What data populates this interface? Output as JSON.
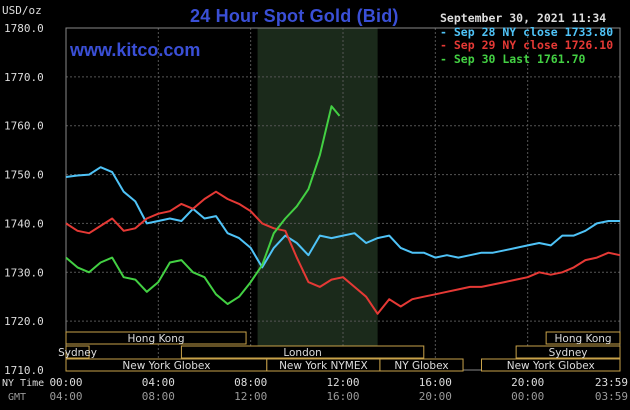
{
  "header": {
    "title": "24 Hour Spot Gold (Bid)",
    "brand": "www.kitco.com",
    "unit": "USD/oz",
    "timestamp": "September 30, 2021 11:34"
  },
  "legend": [
    {
      "label": "Sep 28 NY close 1733.80",
      "color": "#4fc3f7"
    },
    {
      "label": "Sep 29 NY close 1726.10",
      "color": "#e53935"
    },
    {
      "label": "Sep 30 Last 1761.70",
      "color": "#43d043"
    }
  ],
  "axes": {
    "ny_time_label": "NY Time",
    "gmt_label": "GMT",
    "ny_ticks": [
      "00:00",
      "04:00",
      "08:00",
      "12:00",
      "16:00",
      "20:00",
      "23:59"
    ],
    "gmt_ticks": [
      "04:00",
      "08:00",
      "12:00",
      "16:00",
      "20:00",
      "00:00",
      "03:59"
    ],
    "y_ticks": [
      "1780.0",
      "1770.0",
      "1760.0",
      "1750.0",
      "1740.0",
      "1730.0",
      "1720.0",
      "1710.0"
    ]
  },
  "sessions": [
    {
      "label": "Hong Kong",
      "start_h": 0,
      "end_h": 7.8,
      "row": 0
    },
    {
      "label": "Hong Kong",
      "start_h": 20.8,
      "end_h": 24,
      "row": 0
    },
    {
      "label": "Sydney",
      "start_h": 0,
      "end_h": 1,
      "row": 1
    },
    {
      "label": "London",
      "start_h": 5,
      "end_h": 15.5,
      "row": 1
    },
    {
      "label": "Sydney",
      "start_h": 19.5,
      "end_h": 24,
      "row": 1
    },
    {
      "label": "New York Globex",
      "start_h": 0,
      "end_h": 8.7,
      "row": 2
    },
    {
      "label": "New York NYMEX",
      "start_h": 8.7,
      "end_h": 13.6,
      "row": 2
    },
    {
      "label": "NY Globex",
      "start_h": 13.6,
      "end_h": 17.2,
      "row": 2
    },
    {
      "label": "New York Globex",
      "start_h": 18,
      "end_h": 24,
      "row": 2
    }
  ],
  "chart_data": {
    "type": "line",
    "xlabel": "NY Time",
    "ylabel": "USD/oz",
    "xlim": [
      0,
      24
    ],
    "ylim": [
      1710,
      1780
    ],
    "grid": true,
    "highlight_range_h": [
      8.3,
      13.5
    ],
    "series": [
      {
        "name": "Sep 28 NY close 1733.80",
        "color": "#4fc3f7",
        "x": [
          0,
          0.5,
          1,
          1.5,
          2,
          2.5,
          3,
          3.5,
          4,
          4.5,
          5,
          5.5,
          6,
          6.5,
          7,
          7.5,
          8,
          8.5,
          9,
          9.5,
          10,
          10.5,
          11,
          11.5,
          12,
          12.5,
          13,
          13.5,
          14,
          14.5,
          15,
          15.5,
          16,
          16.5,
          17,
          17.5,
          18,
          18.5,
          19,
          19.5,
          20,
          20.5,
          21,
          21.5,
          22,
          22.5,
          23,
          23.5,
          24
        ],
        "values": [
          1749.5,
          1749.8,
          1750,
          1751.5,
          1750.5,
          1746.5,
          1744.5,
          1740,
          1740.5,
          1741,
          1740.5,
          1743,
          1741,
          1741.5,
          1738,
          1737,
          1735,
          1731,
          1735,
          1737.5,
          1736,
          1733.5,
          1737.5,
          1737,
          1737.5,
          1738,
          1736,
          1737,
          1737.5,
          1735,
          1734,
          1734,
          1733,
          1733.5,
          1733,
          1733.5,
          1734,
          1734,
          1734.5,
          1735,
          1735.5,
          1736,
          1735.5,
          1737.5,
          1737.5,
          1738.5,
          1740,
          1740.5,
          1740.5
        ]
      },
      {
        "name": "Sep 29 NY close 1726.10",
        "color": "#e53935",
        "x": [
          0,
          0.5,
          1,
          1.5,
          2,
          2.5,
          3,
          3.5,
          4,
          4.5,
          5,
          5.5,
          6,
          6.5,
          7,
          7.5,
          8,
          8.5,
          9,
          9.5,
          10,
          10.5,
          11,
          11.5,
          12,
          12.5,
          13,
          13.5,
          14,
          14.5,
          15,
          15.5,
          16,
          16.5,
          17,
          17.5,
          18,
          18.5,
          19,
          19.5,
          20,
          20.5,
          21,
          21.5,
          22,
          22.5,
          23,
          23.5,
          24
        ],
        "values": [
          1740,
          1738.5,
          1738,
          1739.5,
          1741,
          1738.5,
          1739,
          1741,
          1742,
          1742.5,
          1744,
          1743,
          1745,
          1746.5,
          1745,
          1744,
          1742.5,
          1740,
          1739,
          1738.5,
          1733,
          1728,
          1727,
          1728.5,
          1729,
          1727,
          1725,
          1721.5,
          1724.5,
          1723,
          1724.5,
          1725,
          1725.5,
          1726,
          1726.5,
          1727,
          1727,
          1727.5,
          1728,
          1728.5,
          1729,
          1730,
          1729.5,
          1730,
          1731,
          1732.5,
          1733,
          1734,
          1733.5
        ]
      },
      {
        "name": "Sep 30 Last 1761.70",
        "color": "#43d043",
        "x": [
          0,
          0.5,
          1,
          1.5,
          2,
          2.5,
          3,
          3.5,
          4,
          4.5,
          5,
          5.5,
          6,
          6.5,
          7,
          7.5,
          8,
          8.5,
          9,
          9.5,
          10,
          10.5,
          11,
          11.5,
          11.85
        ],
        "values": [
          1733,
          1731,
          1730,
          1732,
          1733,
          1729,
          1728.5,
          1726,
          1728,
          1732,
          1732.5,
          1730,
          1729,
          1725.5,
          1723.5,
          1725,
          1728,
          1731.5,
          1738,
          1741,
          1743.5,
          1747,
          1754,
          1764,
          1762
        ]
      }
    ]
  }
}
